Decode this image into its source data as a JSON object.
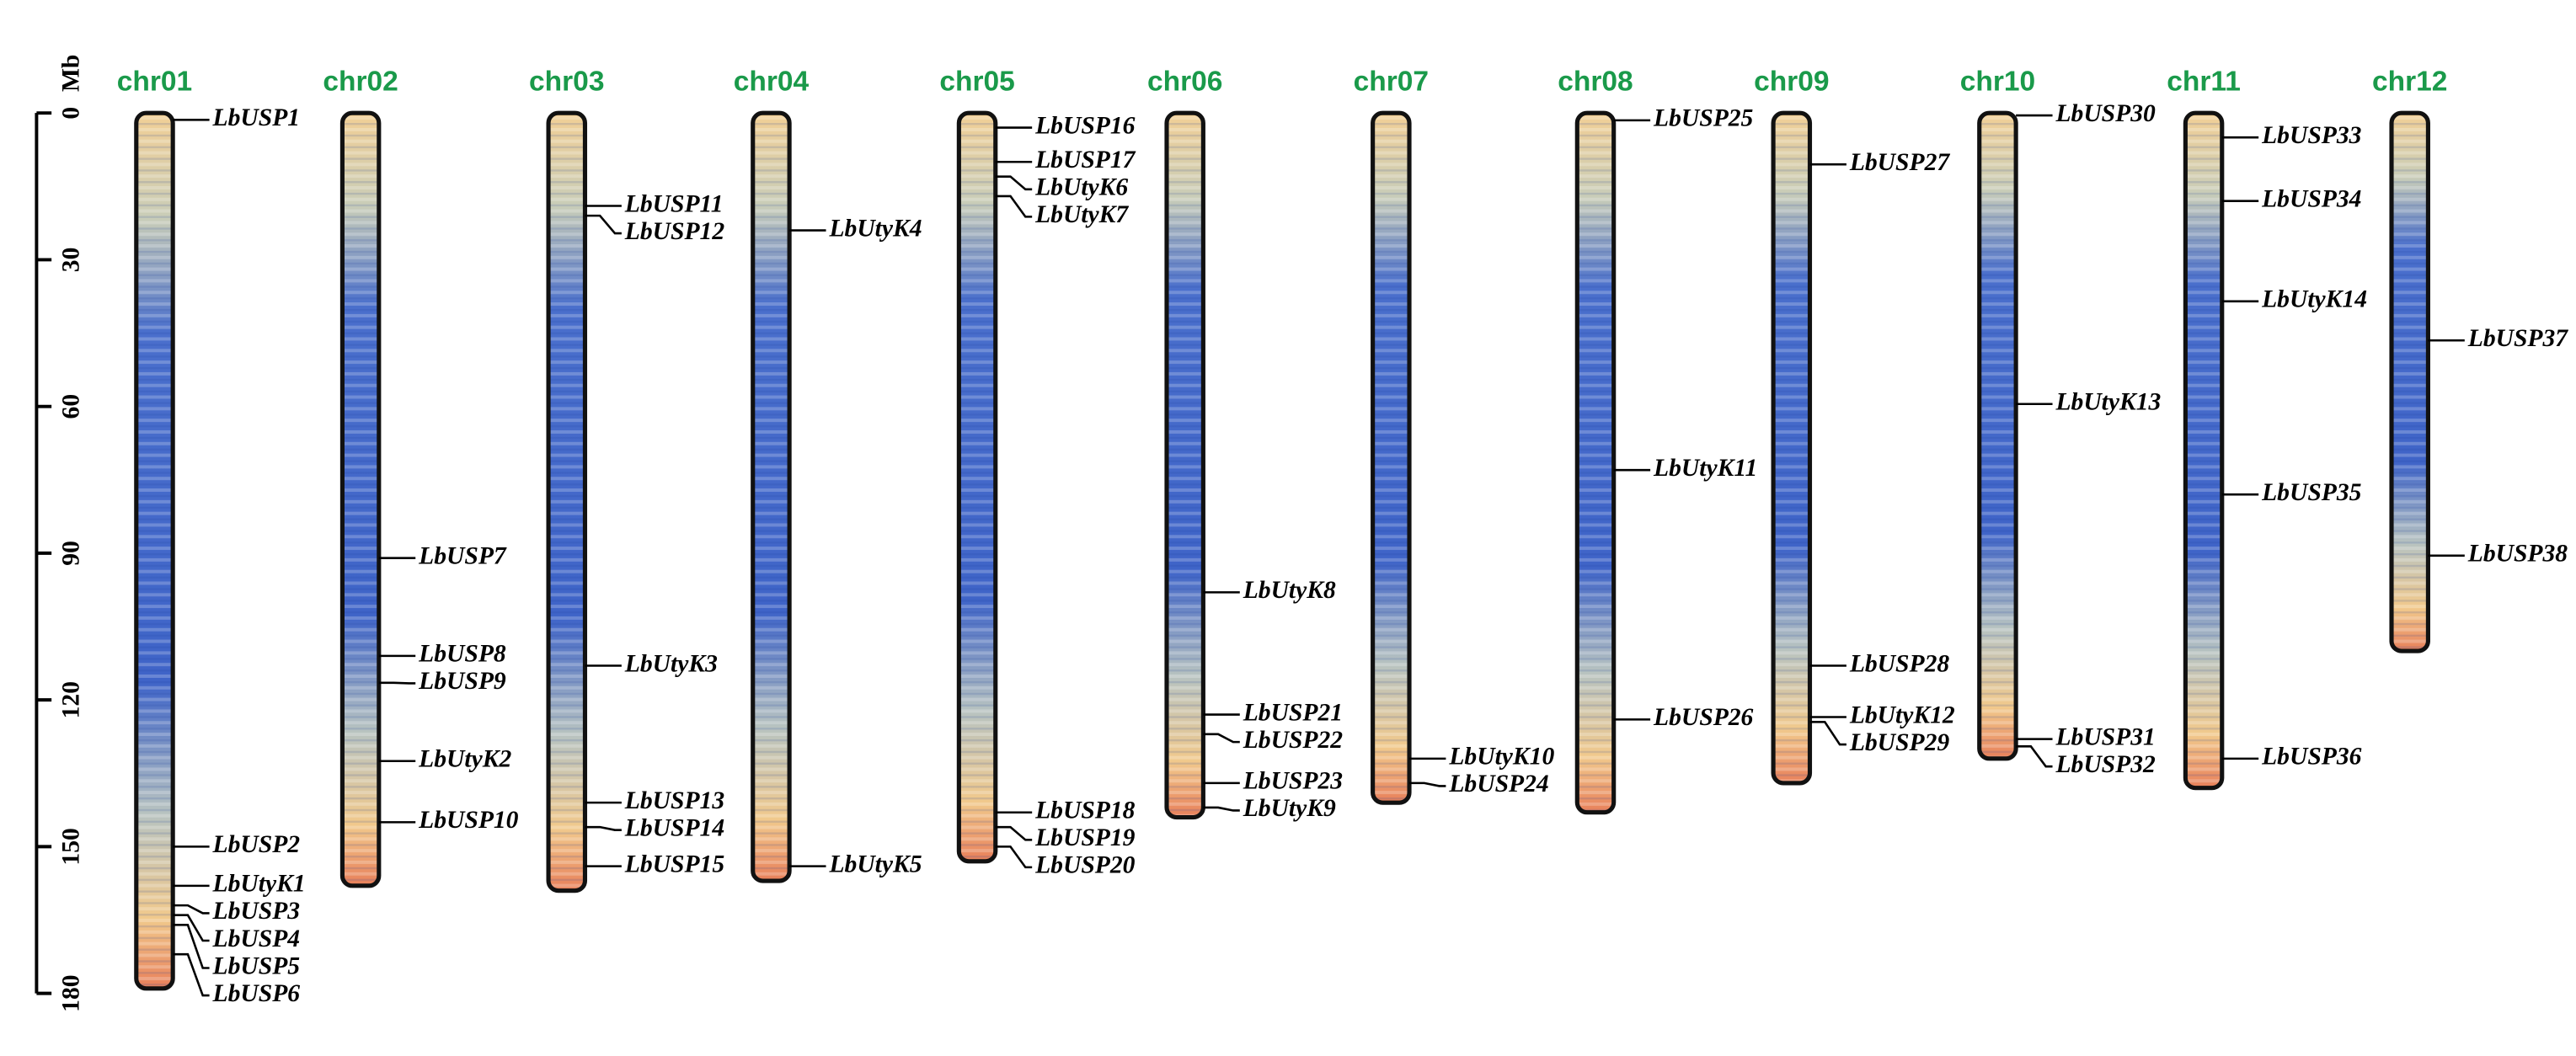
{
  "axis": {
    "unit": "Mb",
    "ticks": [
      0,
      30,
      60,
      90,
      120,
      150,
      180
    ]
  },
  "chromosomes": [
    {
      "name": "chr01",
      "length": 179,
      "genes": [
        {
          "name": "LbUSP1",
          "position": 1.4
        },
        {
          "name": "LbUSP2",
          "position": 150
        },
        {
          "name": "LbUtyK1",
          "position": 158
        },
        {
          "name": "LbUSP3",
          "position": 162
        },
        {
          "name": "LbUSP4",
          "position": 164
        },
        {
          "name": "LbUSP5",
          "position": 166
        },
        {
          "name": "LbUSP6",
          "position": 172
        }
      ]
    },
    {
      "name": "chr02",
      "length": 158,
      "genes": [
        {
          "name": "LbUSP7",
          "position": 91
        },
        {
          "name": "LbUSP8",
          "position": 111
        },
        {
          "name": "LbUSP9",
          "position": 116.5
        },
        {
          "name": "LbUtyK2",
          "position": 132.5
        },
        {
          "name": "LbUSP10",
          "position": 145
        }
      ]
    },
    {
      "name": "chr03",
      "length": 159,
      "genes": [
        {
          "name": "LbUSP11",
          "position": 19
        },
        {
          "name": "LbUSP12",
          "position": 21
        },
        {
          "name": "LbUtyK3",
          "position": 113
        },
        {
          "name": "LbUSP13",
          "position": 141
        },
        {
          "name": "LbUSP14",
          "position": 146
        },
        {
          "name": "LbUSP15",
          "position": 154
        }
      ]
    },
    {
      "name": "chr04",
      "length": 157,
      "genes": [
        {
          "name": "LbUtyK4",
          "position": 24
        },
        {
          "name": "LbUtyK5",
          "position": 154
        }
      ]
    },
    {
      "name": "chr05",
      "length": 153,
      "genes": [
        {
          "name": "LbUSP16",
          "position": 3
        },
        {
          "name": "LbUSP17",
          "position": 10
        },
        {
          "name": "LbUtyK6",
          "position": 13
        },
        {
          "name": "LbUtyK7",
          "position": 17
        },
        {
          "name": "LbUSP18",
          "position": 143
        },
        {
          "name": "LbUSP19",
          "position": 146
        },
        {
          "name": "LbUSP20",
          "position": 150
        }
      ]
    },
    {
      "name": "chr06",
      "length": 144,
      "genes": [
        {
          "name": "LbUtyK8",
          "position": 98
        },
        {
          "name": "LbUSP21",
          "position": 123
        },
        {
          "name": "LbUSP22",
          "position": 127
        },
        {
          "name": "LbUSP23",
          "position": 137
        },
        {
          "name": "LbUtyK9",
          "position": 142
        }
      ]
    },
    {
      "name": "chr07",
      "length": 141,
      "genes": [
        {
          "name": "LbUtyK10",
          "position": 132
        },
        {
          "name": "LbUSP24",
          "position": 137
        }
      ]
    },
    {
      "name": "chr08",
      "length": 143,
      "genes": [
        {
          "name": "LbUSP25",
          "position": 1.5
        },
        {
          "name": "LbUtyK11",
          "position": 73
        },
        {
          "name": "LbUSP26",
          "position": 124
        }
      ]
    },
    {
      "name": "chr09",
      "length": 137,
      "genes": [
        {
          "name": "LbUSP27",
          "position": 10.5
        },
        {
          "name": "LbUSP28",
          "position": 113
        },
        {
          "name": "LbUtyK12",
          "position": 123.5
        },
        {
          "name": "LbUSP29",
          "position": 124.5
        }
      ]
    },
    {
      "name": "chr10",
      "length": 132,
      "genes": [
        {
          "name": "LbUSP30",
          "position": 0.5
        },
        {
          "name": "LbUtyK13",
          "position": 59.5
        },
        {
          "name": "LbUSP31",
          "position": 128
        },
        {
          "name": "LbUSP32",
          "position": 129.5
        }
      ]
    },
    {
      "name": "chr11",
      "length": 138,
      "genes": [
        {
          "name": "LbUSP33",
          "position": 5
        },
        {
          "name": "LbUSP34",
          "position": 18
        },
        {
          "name": "LbUtyK14",
          "position": 38.5
        },
        {
          "name": "LbUSP35",
          "position": 78
        },
        {
          "name": "LbUSP36",
          "position": 132
        }
      ]
    },
    {
      "name": "chr12",
      "length": 110,
      "genes": [
        {
          "name": "LbUSP37",
          "position": 46.5
        },
        {
          "name": "LbUSP38",
          "position": 90.5
        }
      ]
    }
  ]
}
